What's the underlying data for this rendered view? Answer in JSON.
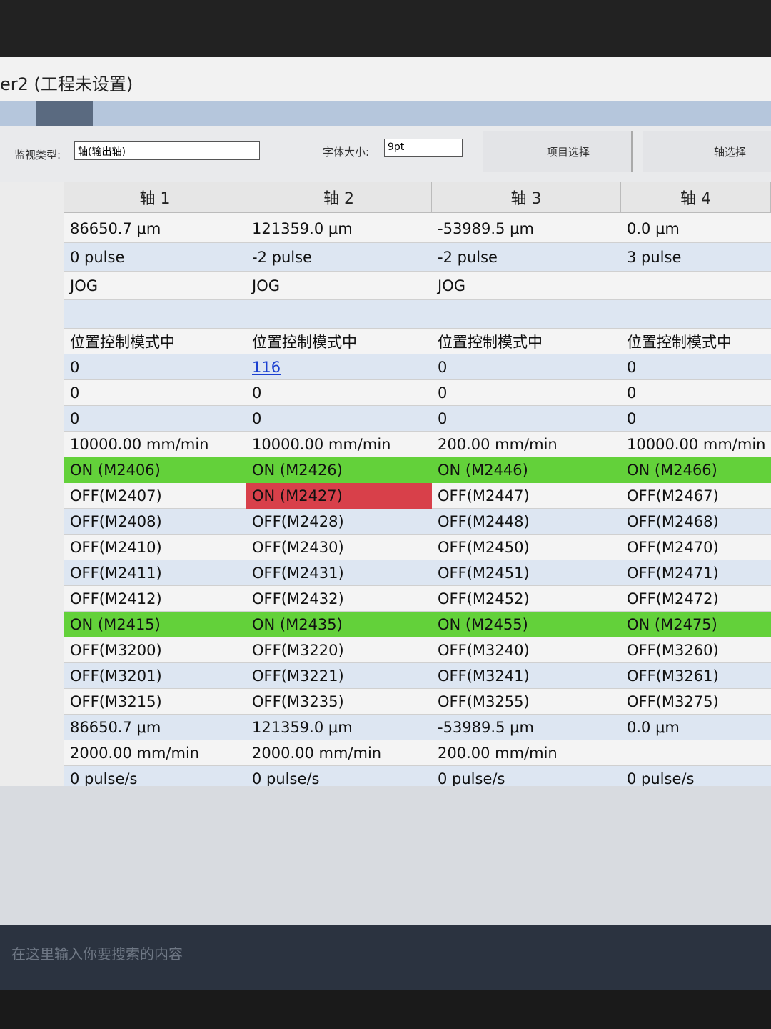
{
  "window": {
    "title": "er2 (工程未设置)"
  },
  "toolbar": {
    "monitor_type_label": "监视类型:",
    "monitor_type_value": "轴(输出轴)",
    "font_size_label": "字体大小:",
    "font_size_value": "9pt",
    "item_select": "项目选择",
    "axis_select": "轴选择"
  },
  "table": {
    "headers": [
      "轴 1",
      "轴 2",
      "轴 3",
      "轴 4"
    ],
    "rows": [
      [
        "86650.7 μm",
        "121359.0 μm",
        "-53989.5 μm",
        "0.0 μm"
      ],
      [
        "0 pulse",
        "-2 pulse",
        "-2 pulse",
        "3 pulse"
      ],
      [
        "JOG",
        "JOG",
        "JOG",
        null
      ],
      [
        null,
        null,
        null,
        null
      ],
      [
        "位置控制模式中",
        "位置控制模式中",
        "位置控制模式中",
        "位置控制模式中"
      ],
      [
        "0",
        "116",
        "0",
        "0"
      ],
      [
        "0",
        "0",
        "0",
        "0"
      ],
      [
        "0",
        "0",
        "0",
        "0"
      ],
      [
        "10000.00 mm/min",
        "10000.00 mm/min",
        "200.00 mm/min",
        "10000.00 mm/min"
      ],
      [
        "ON (M2406)",
        "ON (M2426)",
        "ON (M2446)",
        "ON (M2466)"
      ],
      [
        "OFF(M2407)",
        "ON (M2427)",
        "OFF(M2447)",
        "OFF(M2467)"
      ],
      [
        "OFF(M2408)",
        "OFF(M2428)",
        "OFF(M2448)",
        "OFF(M2468)"
      ],
      [
        "OFF(M2410)",
        "OFF(M2430)",
        "OFF(M2450)",
        "OFF(M2470)"
      ],
      [
        "OFF(M2411)",
        "OFF(M2431)",
        "OFF(M2451)",
        "OFF(M2471)"
      ],
      [
        "OFF(M2412)",
        "OFF(M2432)",
        "OFF(M2452)",
        "OFF(M2472)"
      ],
      [
        "ON (M2415)",
        "ON (M2435)",
        "ON (M2455)",
        "ON (M2475)"
      ],
      [
        "OFF(M3200)",
        "OFF(M3220)",
        "OFF(M3240)",
        "OFF(M3260)"
      ],
      [
        "OFF(M3201)",
        "OFF(M3221)",
        "OFF(M3241)",
        "OFF(M3261)"
      ],
      [
        "OFF(M3215)",
        "OFF(M3235)",
        "OFF(M3255)",
        "OFF(M3275)"
      ],
      [
        "86650.7 μm",
        "121359.0 μm",
        "-53989.5 μm",
        "0.0 μm"
      ],
      [
        "2000.00 mm/min",
        "2000.00 mm/min",
        "200.00 mm/min",
        null
      ],
      [
        "0 pulse/s",
        "0 pulse/s",
        "0 pulse/s",
        "0 pulse/s"
      ]
    ]
  },
  "taskbar": {
    "search": "在这里输入你要搜索的内容"
  }
}
